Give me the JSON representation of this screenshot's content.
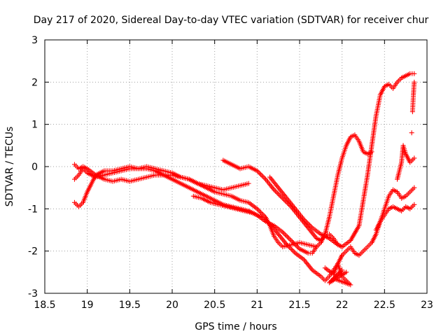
{
  "chart_data": {
    "type": "scatter",
    "title": "Day 217 of 2020, Sidereal Day-to-day VTEC variation (SDTVAR) for receiver chur",
    "xlabel": "GPS time / hours",
    "ylabel": "SDTVAR / TECUs",
    "xlim": [
      18.5,
      23
    ],
    "ylim": [
      -3,
      3
    ],
    "xticks": [
      18.5,
      19,
      19.5,
      20,
      20.5,
      21,
      21.5,
      22,
      22.5,
      23
    ],
    "xtick_labels": [
      "18.5",
      "19",
      "19.5",
      "20",
      "20.5",
      "21",
      "21.5",
      "22",
      "22.5",
      "23"
    ],
    "yticks": [
      -3,
      -2,
      -1,
      0,
      1,
      2,
      3
    ],
    "ytick_labels": [
      "-3",
      "-2",
      "-1",
      "0",
      "1",
      "2",
      "3"
    ],
    "grid": true,
    "marker": "+",
    "color": "#ff0000",
    "series": [
      {
        "name": "track-1",
        "points": [
          [
            18.85,
            0.05
          ],
          [
            18.9,
            -0.05
          ],
          [
            18.95,
            0.0
          ],
          [
            19.0,
            -0.05
          ],
          [
            19.1,
            -0.2
          ],
          [
            19.2,
            -0.3
          ],
          [
            19.3,
            -0.35
          ],
          [
            19.4,
            -0.3
          ],
          [
            19.5,
            -0.35
          ],
          [
            19.6,
            -0.3
          ],
          [
            19.7,
            -0.25
          ],
          [
            19.8,
            -0.2
          ],
          [
            19.9,
            -0.2
          ],
          [
            20.0,
            -0.2
          ],
          [
            20.1,
            -0.25
          ],
          [
            20.2,
            -0.3
          ],
          [
            20.3,
            -0.4
          ],
          [
            20.4,
            -0.45
          ],
          [
            20.5,
            -0.5
          ],
          [
            20.6,
            -0.55
          ],
          [
            20.7,
            -0.5
          ],
          [
            20.8,
            -0.45
          ],
          [
            20.9,
            -0.4
          ]
        ]
      },
      {
        "name": "track-2",
        "points": [
          [
            18.85,
            -0.85
          ],
          [
            18.9,
            -0.95
          ],
          [
            18.95,
            -0.85
          ],
          [
            19.0,
            -0.6
          ],
          [
            19.05,
            -0.4
          ],
          [
            19.1,
            -0.2
          ],
          [
            19.2,
            -0.1
          ],
          [
            19.3,
            -0.1
          ],
          [
            19.4,
            -0.05
          ],
          [
            19.5,
            0.0
          ],
          [
            19.6,
            -0.05
          ],
          [
            19.7,
            0.0
          ],
          [
            19.8,
            -0.05
          ],
          [
            19.9,
            -0.1
          ],
          [
            20.0,
            -0.15
          ],
          [
            20.1,
            -0.25
          ],
          [
            20.2,
            -0.3
          ],
          [
            20.3,
            -0.4
          ],
          [
            20.4,
            -0.5
          ],
          [
            20.5,
            -0.6
          ],
          [
            20.6,
            -0.65
          ],
          [
            20.7,
            -0.7
          ],
          [
            20.8,
            -0.8
          ],
          [
            20.9,
            -0.85
          ],
          [
            21.0,
            -1.0
          ],
          [
            21.1,
            -1.2
          ],
          [
            21.15,
            -1.4
          ],
          [
            21.2,
            -1.65
          ],
          [
            21.25,
            -1.8
          ],
          [
            21.3,
            -1.9
          ],
          [
            21.4,
            -1.85
          ],
          [
            21.5,
            -1.8
          ],
          [
            21.6,
            -1.85
          ],
          [
            21.7,
            -1.9
          ],
          [
            21.75,
            -1.8
          ],
          [
            21.8,
            -1.6
          ],
          [
            21.85,
            -1.2
          ],
          [
            21.9,
            -0.7
          ],
          [
            21.95,
            -0.2
          ],
          [
            22.0,
            0.2
          ],
          [
            22.05,
            0.5
          ],
          [
            22.1,
            0.7
          ],
          [
            22.15,
            0.75
          ],
          [
            22.2,
            0.6
          ],
          [
            22.25,
            0.35
          ],
          [
            22.3,
            0.3
          ],
          [
            22.35,
            0.35
          ]
        ]
      },
      {
        "name": "track-3",
        "points": [
          [
            18.85,
            -0.3
          ],
          [
            18.9,
            -0.2
          ],
          [
            18.95,
            -0.05
          ],
          [
            19.0,
            -0.15
          ],
          [
            19.1,
            -0.25
          ],
          [
            19.2,
            -0.2
          ],
          [
            19.3,
            -0.15
          ],
          [
            19.4,
            -0.1
          ],
          [
            19.5,
            -0.05
          ],
          [
            19.6,
            -0.05
          ],
          [
            19.7,
            -0.05
          ],
          [
            19.8,
            -0.1
          ],
          [
            19.9,
            -0.2
          ],
          [
            20.0,
            -0.3
          ],
          [
            20.1,
            -0.4
          ],
          [
            20.2,
            -0.5
          ],
          [
            20.3,
            -0.6
          ],
          [
            20.4,
            -0.7
          ],
          [
            20.5,
            -0.8
          ],
          [
            20.6,
            -0.9
          ],
          [
            20.7,
            -0.95
          ],
          [
            20.8,
            -1.0
          ],
          [
            20.9,
            -1.05
          ],
          [
            21.0,
            -1.15
          ],
          [
            21.1,
            -1.3
          ],
          [
            21.2,
            -1.4
          ],
          [
            21.3,
            -1.55
          ],
          [
            21.4,
            -1.75
          ],
          [
            21.5,
            -1.95
          ],
          [
            21.6,
            -2.05
          ],
          [
            21.65,
            -2.05
          ],
          [
            21.7,
            -1.9
          ]
        ]
      },
      {
        "name": "track-4",
        "points": [
          [
            20.6,
            0.15
          ],
          [
            20.7,
            0.05
          ],
          [
            20.8,
            -0.05
          ],
          [
            20.9,
            0.0
          ],
          [
            21.0,
            -0.1
          ],
          [
            21.1,
            -0.3
          ],
          [
            21.2,
            -0.55
          ],
          [
            21.3,
            -0.75
          ],
          [
            21.4,
            -0.95
          ],
          [
            21.5,
            -1.2
          ],
          [
            21.6,
            -1.45
          ],
          [
            21.7,
            -1.7
          ],
          [
            21.75,
            -1.75
          ],
          [
            21.8,
            -1.6
          ],
          [
            21.85,
            -1.6
          ],
          [
            21.9,
            -1.7
          ],
          [
            21.95,
            -1.85
          ],
          [
            22.0,
            -1.9
          ],
          [
            22.1,
            -1.75
          ],
          [
            22.2,
            -1.4
          ],
          [
            22.25,
            -0.8
          ],
          [
            22.3,
            -0.2
          ],
          [
            22.35,
            0.5
          ],
          [
            22.4,
            1.2
          ],
          [
            22.45,
            1.7
          ],
          [
            22.5,
            1.9
          ],
          [
            22.55,
            1.95
          ],
          [
            22.6,
            1.85
          ],
          [
            22.65,
            2.0
          ],
          [
            22.7,
            2.1
          ],
          [
            22.75,
            2.15
          ],
          [
            22.8,
            2.2
          ],
          [
            22.85,
            2.2
          ]
        ]
      },
      {
        "name": "track-5",
        "points": [
          [
            20.25,
            -0.7
          ],
          [
            20.35,
            -0.75
          ],
          [
            20.45,
            -0.85
          ],
          [
            20.55,
            -0.9
          ],
          [
            20.65,
            -0.95
          ],
          [
            20.75,
            -1.0
          ],
          [
            20.85,
            -1.05
          ],
          [
            20.95,
            -1.1
          ],
          [
            21.05,
            -1.2
          ],
          [
            21.15,
            -1.35
          ],
          [
            21.25,
            -1.6
          ],
          [
            21.35,
            -1.85
          ],
          [
            21.45,
            -2.05
          ],
          [
            21.55,
            -2.2
          ],
          [
            21.65,
            -2.45
          ],
          [
            21.75,
            -2.6
          ],
          [
            21.8,
            -2.7
          ],
          [
            21.85,
            -2.6
          ],
          [
            21.9,
            -2.45
          ],
          [
            21.95,
            -2.3
          ],
          [
            22.0,
            -2.1
          ]
        ]
      },
      {
        "name": "track-6",
        "points": [
          [
            21.15,
            -0.25
          ],
          [
            21.25,
            -0.5
          ],
          [
            21.35,
            -0.75
          ],
          [
            21.45,
            -1.0
          ],
          [
            21.55,
            -1.25
          ],
          [
            21.65,
            -1.45
          ],
          [
            21.75,
            -1.6
          ],
          [
            21.85,
            -1.7
          ],
          [
            21.95,
            -1.85
          ],
          [
            22.0,
            -1.9
          ]
        ]
      },
      {
        "name": "track-7",
        "points": [
          [
            22.0,
            -2.1
          ],
          [
            22.05,
            -2.0
          ],
          [
            22.1,
            -1.9
          ],
          [
            22.15,
            -2.05
          ],
          [
            22.2,
            -2.1
          ],
          [
            22.25,
            -2.0
          ],
          [
            22.3,
            -1.9
          ],
          [
            22.35,
            -1.8
          ],
          [
            22.4,
            -1.6
          ],
          [
            22.45,
            -1.3
          ],
          [
            22.5,
            -1.0
          ],
          [
            22.55,
            -0.7
          ],
          [
            22.6,
            -0.55
          ],
          [
            22.65,
            -0.6
          ],
          [
            22.7,
            -0.75
          ],
          [
            22.75,
            -0.7
          ],
          [
            22.8,
            -0.6
          ],
          [
            22.85,
            -0.5
          ]
        ]
      },
      {
        "name": "track-8",
        "points": [
          [
            22.4,
            -1.5
          ],
          [
            22.45,
            -1.3
          ],
          [
            22.5,
            -1.15
          ],
          [
            22.55,
            -1.0
          ],
          [
            22.6,
            -0.95
          ],
          [
            22.65,
            -1.0
          ],
          [
            22.7,
            -1.05
          ],
          [
            22.75,
            -0.95
          ],
          [
            22.8,
            -1.0
          ],
          [
            22.85,
            -0.9
          ]
        ]
      },
      {
        "name": "track-9",
        "points": [
          [
            22.65,
            -0.3
          ],
          [
            22.7,
            0.1
          ],
          [
            22.72,
            0.5
          ],
          [
            22.75,
            0.3
          ],
          [
            22.8,
            0.1
          ],
          [
            22.85,
            0.2
          ]
        ]
      },
      {
        "name": "track-10",
        "points": [
          [
            22.83,
            1.3
          ],
          [
            22.84,
            1.7
          ],
          [
            22.85,
            2.0
          ],
          [
            22.82,
            0.8
          ]
        ]
      },
      {
        "name": "scatter-low",
        "points": [
          [
            21.8,
            -2.4
          ],
          [
            21.9,
            -2.55
          ],
          [
            21.95,
            -2.3
          ],
          [
            22.0,
            -2.6
          ],
          [
            22.05,
            -2.7
          ],
          [
            22.1,
            -2.8
          ],
          [
            21.9,
            -2.65
          ],
          [
            22.0,
            -2.45
          ],
          [
            21.85,
            -2.75
          ],
          [
            22.05,
            -2.5
          ]
        ]
      }
    ]
  }
}
